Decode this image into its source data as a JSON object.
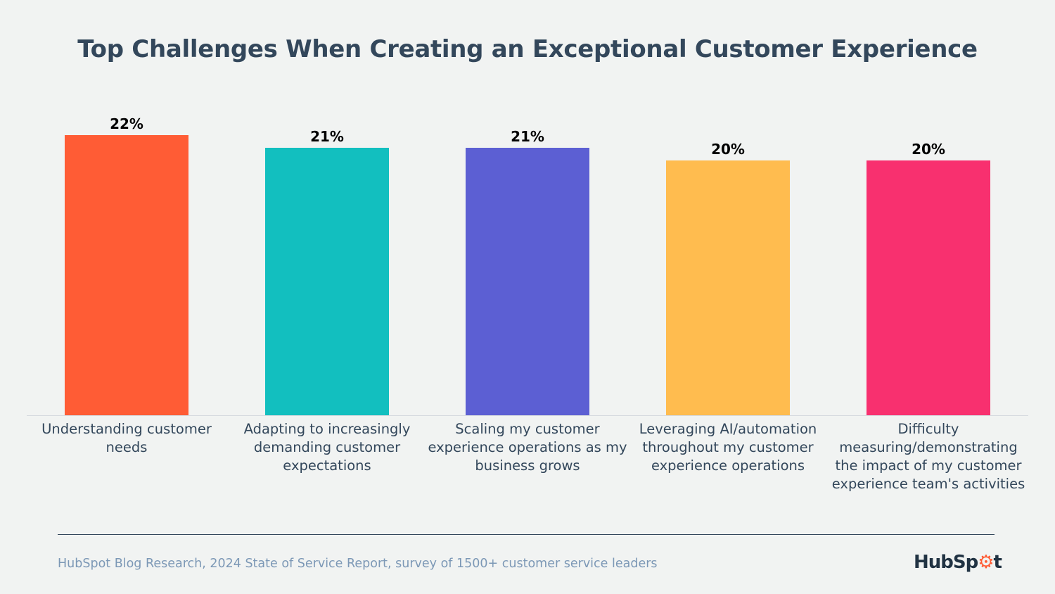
{
  "chart_data": {
    "type": "bar",
    "title": "Top Challenges When Creating an Exceptional Customer Experience",
    "categories": [
      "Understanding customer needs",
      "Adapting to increasingly demanding customer expectations",
      "Scaling my customer experience operations as my business grows",
      "Leveraging AI/automation throughout my customer experience operations",
      "Difficulty measuring/demonstrating the impact of my customer experience team's activities"
    ],
    "values": [
      22,
      21,
      21,
      20,
      20
    ],
    "value_labels": [
      "22%",
      "21%",
      "21%",
      "20%",
      "20%"
    ],
    "colors": [
      "#FF5C35",
      "#12BFBF",
      "#5C5FD3",
      "#FFBC4F",
      "#F8306F"
    ],
    "ylim": [
      0,
      22
    ],
    "grid": false,
    "xlabel": "",
    "ylabel": ""
  },
  "footer": {
    "source": "HubSpot Blog Research, 2024 State of Service Report, survey of 1500+ customer service leaders",
    "logo": "HubSpot"
  }
}
